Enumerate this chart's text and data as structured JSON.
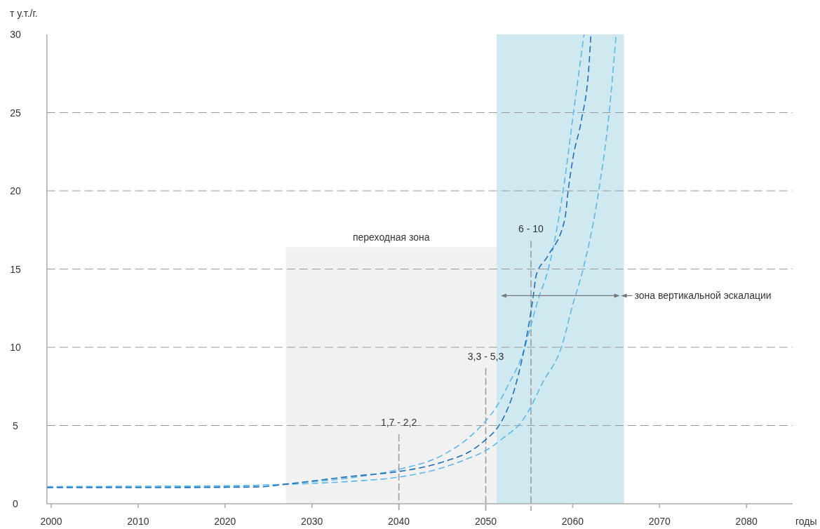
{
  "chart_data": {
    "type": "line",
    "ylabel": "т у.т./г.",
    "xlabel": "годы",
    "xlim": [
      1999.5,
      2085.3
    ],
    "ylim": [
      0,
      30
    ],
    "xticks": [
      2000,
      2010,
      2020,
      2030,
      2040,
      2050,
      2060,
      2070,
      2080
    ],
    "yticks": [
      0,
      5,
      10,
      15,
      20,
      25,
      30
    ],
    "grid": "y",
    "line_style": "dashed",
    "series": [
      {
        "color": "#5bb8e8",
        "x": [
          1999.5,
          2010,
          2020,
          2025,
          2030,
          2035,
          2040,
          2045,
          2048,
          2050,
          2051,
          2052.5,
          2054.5,
          2055,
          2056,
          2057.2,
          2058.9,
          2060.1,
          2061.3
        ],
        "values": [
          1.1,
          1.12,
          1.15,
          1.2,
          1.4,
          1.7,
          2.2,
          3.1,
          4.2,
          5.3,
          6.0,
          7.5,
          10,
          11,
          13,
          15,
          20,
          25,
          30
        ]
      },
      {
        "color": "#5bb8e8",
        "x": [
          1999.5,
          2010,
          2020,
          2025,
          2030,
          2035,
          2040,
          2045,
          2048,
          2050,
          2052,
          2054.2,
          2055,
          2056.5,
          2058.7,
          2060,
          2061.2,
          2063,
          2064.2,
          2065
        ],
        "values": [
          1.05,
          1.07,
          1.1,
          1.2,
          1.3,
          1.45,
          1.7,
          2.3,
          2.9,
          3.4,
          4.2,
          5.3,
          6,
          7.7,
          10,
          12.7,
          15,
          20,
          25,
          30
        ]
      },
      {
        "color": "#1f6fb5",
        "x": [
          1999.5,
          2010,
          2020,
          2024,
          2027,
          2030.4,
          2034.5,
          2040,
          2043.3,
          2045.8,
          2048.2,
          2050,
          2051.2,
          2052,
          2053.4,
          2054.2,
          2055,
          2055.5,
          2055.8,
          2057.1,
          2059.1,
          2059.5,
          2060.1,
          2061,
          2061.9,
          2062.1
        ],
        "values": [
          1.03,
          1.03,
          1.05,
          1.08,
          1.25,
          1.48,
          1.75,
          2.06,
          2.4,
          2.8,
          3.35,
          4.1,
          4.75,
          5.45,
          7.5,
          9.3,
          11.6,
          13.4,
          14.6,
          15.8,
          18.2,
          20.1,
          22.3,
          24.5,
          28.2,
          30
        ]
      }
    ],
    "bands": [
      {
        "axis": "x",
        "from": 2027,
        "to": 2051.25,
        "label": "переходная зона",
        "color": "#f1f1f1"
      },
      {
        "axis": "x",
        "from": 2051.25,
        "to": 2065.9,
        "label": "зона вертикальной эскалации",
        "color": "#d0e8f0"
      }
    ],
    "ref_lines": [
      {
        "axis": "x",
        "value": 2040,
        "color": "#999999",
        "line_style": "dashed"
      },
      {
        "axis": "x",
        "value": 2050,
        "color": "#999999",
        "line_style": "dashed"
      },
      {
        "axis": "x",
        "value": 2055.2,
        "color": "#999999",
        "line_style": "dashed"
      }
    ],
    "annotations": [
      "1,7 - 2,2",
      "3,3 - 5,3",
      "6 - 10"
    ]
  }
}
